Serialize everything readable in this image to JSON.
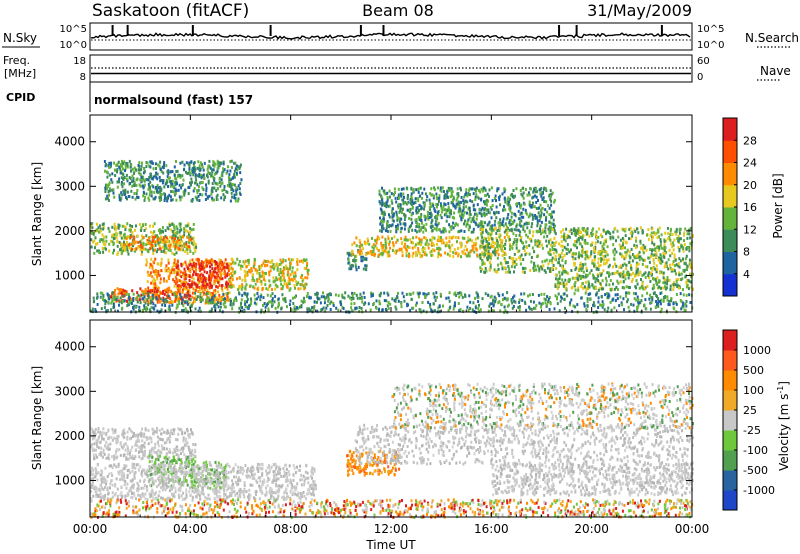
{
  "header": {
    "station": "Saskatoon (fitACF)",
    "beam": "Beam 08",
    "date": "31/May/2009"
  },
  "nsky_panel": {
    "left_label": "N.Sky",
    "right_label": "N.Search",
    "left_ticks": [
      "10^5",
      "10^0"
    ],
    "right_ticks": [
      "10^5",
      "10^0"
    ]
  },
  "freq_panel": {
    "left_label_line1": "Freq.",
    "left_label_line2": "[MHz]",
    "right_label": "Nave",
    "left_ticks": [
      "18",
      "8"
    ],
    "right_ticks": [
      "60",
      "0"
    ]
  },
  "cpid_panel": {
    "label": "CPID",
    "mode": "normalsound (fast) 157"
  },
  "x_axis": {
    "label": "Time UT",
    "ticks": [
      "00:00",
      "04:00",
      "08:00",
      "12:00",
      "16:00",
      "20:00",
      "00:00"
    ]
  },
  "chart_data": [
    {
      "type": "heatmap",
      "name": "power",
      "ylabel": "Slant Range [km]",
      "yticks": [
        "1000",
        "2000",
        "3000",
        "4000"
      ],
      "ylim": [
        180,
        4600
      ],
      "xlim_hours": [
        0,
        24
      ],
      "colorbar": {
        "label": "Power [dB]",
        "ticks": [
          "4",
          "8",
          "12",
          "16",
          "20",
          "24",
          "28"
        ],
        "range": [
          0,
          30
        ],
        "colors": [
          "#1432d2",
          "#1e64a0",
          "#3c8c5a",
          "#64b43c",
          "#e6c81e",
          "#ff8c00",
          "#ff5000",
          "#dc1e1e"
        ]
      },
      "regions": [
        {
          "t": [
            0.0,
            4.2
          ],
          "r": [
            1500,
            2200
          ],
          "level": 0.45
        },
        {
          "t": [
            1.2,
            4.0
          ],
          "r": [
            1600,
            1900
          ],
          "level": 0.7
        },
        {
          "t": [
            2.2,
            5.6
          ],
          "r": [
            400,
            1400
          ],
          "level": 0.65
        },
        {
          "t": [
            3.4,
            5.5
          ],
          "r": [
            750,
            1350
          ],
          "level": 0.95
        },
        {
          "t": [
            0.7,
            4.0
          ],
          "r": [
            450,
            750
          ],
          "level": 0.9
        },
        {
          "t": [
            5.5,
            8.8
          ],
          "r": [
            700,
            1400
          ],
          "level": 0.5
        },
        {
          "t": [
            0.0,
            24.0
          ],
          "r": [
            200,
            650
          ],
          "level": 0.3
        },
        {
          "t": [
            10.2,
            11.0
          ],
          "r": [
            1150,
            1600
          ],
          "level": 0.3
        },
        {
          "t": [
            10.4,
            16.5
          ],
          "r": [
            1450,
            1900
          ],
          "level": 0.55
        },
        {
          "t": [
            11.5,
            18.5
          ],
          "r": [
            2000,
            3000
          ],
          "level": 0.3
        },
        {
          "t": [
            15.5,
            24.0
          ],
          "r": [
            1100,
            2100
          ],
          "level": 0.45
        },
        {
          "t": [
            18.5,
            24.0
          ],
          "r": [
            700,
            1100
          ],
          "level": 0.4
        },
        {
          "t": [
            0.5,
            6.0
          ],
          "r": [
            2700,
            3600
          ],
          "level": 0.3
        }
      ]
    },
    {
      "type": "heatmap",
      "name": "velocity",
      "ylabel": "Slant Range [km]",
      "yticks": [
        "1000",
        "2000",
        "3000",
        "4000"
      ],
      "ylim": [
        180,
        4600
      ],
      "xlim_hours": [
        0,
        24
      ],
      "colorbar": {
        "label": "Velocity [m s^-1]",
        "ticks": [
          "1000",
          "500",
          "100",
          "25",
          "-25",
          "-100",
          "-500",
          "-1000"
        ],
        "range": [
          -1000,
          1000
        ],
        "colors": [
          "#1e46c8",
          "#2864a0",
          "#50a050",
          "#6ec83c",
          "#c8c8c8",
          "#f0aa28",
          "#ff8c00",
          "#ff5a1e",
          "#dc1e1e"
        ]
      },
      "regions": [
        {
          "t": [
            0.0,
            4.2
          ],
          "r": [
            1500,
            2200
          ],
          "class": "gray"
        },
        {
          "t": [
            2.3,
            4.2
          ],
          "r": [
            900,
            1600
          ],
          "class": "green"
        },
        {
          "t": [
            4.0,
            5.4
          ],
          "r": [
            850,
            1450
          ],
          "class": "green"
        },
        {
          "t": [
            0.0,
            9.0
          ],
          "r": [
            600,
            1400
          ],
          "class": "gray"
        },
        {
          "t": [
            0.0,
            24.0
          ],
          "r": [
            200,
            600
          ],
          "class": "low_orange"
        },
        {
          "t": [
            10.2,
            12.3
          ],
          "r": [
            1150,
            1700
          ],
          "class": "orange"
        },
        {
          "t": [
            10.5,
            24.0
          ],
          "r": [
            1400,
            2300
          ],
          "class": "gray"
        },
        {
          "t": [
            12.0,
            24.0
          ],
          "r": [
            2200,
            3200
          ],
          "class": "gray_sparse"
        },
        {
          "t": [
            16.0,
            24.0
          ],
          "r": [
            700,
            1400
          ],
          "class": "gray"
        }
      ]
    }
  ]
}
